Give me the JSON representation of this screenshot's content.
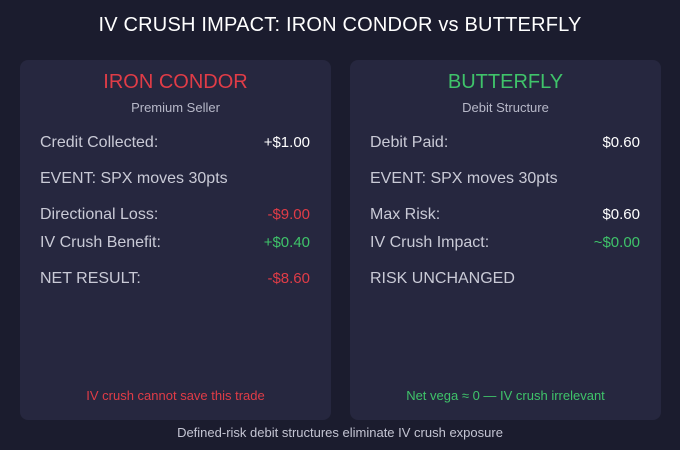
{
  "title": "IV CRUSH IMPACT: IRON CONDOR vs BUTTERFLY",
  "colors": {
    "background": "#1b1c2e",
    "panel": "#26273f",
    "red": "#e03c47",
    "green": "#3fc36a",
    "white": "#ffffff"
  },
  "left": {
    "title": "IRON CONDOR",
    "subtitle": "Premium Seller",
    "rows": [
      {
        "label": "Credit Collected:",
        "value": "+$1.00"
      },
      {
        "label": "EVENT: SPX moves 30pts",
        "value": ""
      },
      {
        "label": "Directional Loss:",
        "value": "-$9.00"
      },
      {
        "label": "IV Crush Benefit:",
        "value": "+$0.40"
      },
      {
        "label": "NET RESULT:",
        "value": "-$8.60"
      }
    ],
    "note": "IV crush cannot save this trade"
  },
  "right": {
    "title": "BUTTERFLY",
    "subtitle": "Debit Structure",
    "rows": [
      {
        "label": "Debit Paid:",
        "value": "$0.60"
      },
      {
        "label": "EVENT: SPX moves 30pts",
        "value": ""
      },
      {
        "label": "Max Risk:",
        "value": "$0.60"
      },
      {
        "label": "IV Crush Impact:",
        "value": "~$0.00"
      },
      {
        "label": "RISK UNCHANGED",
        "value": ""
      }
    ],
    "note": "Net vega ≈ 0 — IV crush irrelevant"
  },
  "caption": "Defined-risk debit structures eliminate IV crush exposure"
}
